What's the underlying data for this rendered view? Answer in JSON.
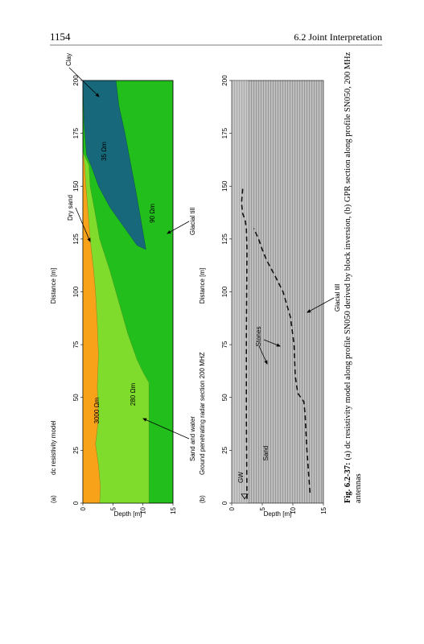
{
  "header": {
    "page_number": "1154",
    "section": "6.2 Joint Interpretation"
  },
  "figure": {
    "panels": [
      {
        "label": "(a)",
        "title": "dc resistivity model",
        "x_axis_title": "Distance [m]",
        "y_axis_title": "Depth [m]",
        "x_ticks": [
          "0",
          "25",
          "50",
          "75",
          "100",
          "125",
          "150",
          "175",
          "200"
        ],
        "y_ticks": [
          "0",
          "5",
          "10",
          "15"
        ],
        "annotations": [
          "Clay",
          "Dry sand",
          "35 Ωm",
          "90 Ωm",
          "Glacial till",
          "3000 Ωm",
          "280 Ωm",
          "Sand and water"
        ]
      },
      {
        "label": "(b)",
        "title": "Ground penetrating radar section 200 MHZ",
        "x_axis_title": "Distance [m]",
        "y_axis_title": "Depth [m]",
        "x_ticks": [
          "0",
          "25",
          "50",
          "75",
          "100",
          "125",
          "150",
          "175",
          "200"
        ],
        "y_ticks": [
          "0",
          "5",
          "10",
          "15"
        ],
        "annotations": [
          "GW",
          "Sand",
          "Stones",
          "Glacial till"
        ]
      }
    ],
    "caption": {
      "label": "Fig. 6.2-37:",
      "lines": [
        "(a) dc resistivity model along profile SN050 derived by block inversion, (b) GPR section along profile SN050, 200 MHz",
        "antennas"
      ]
    }
  }
}
